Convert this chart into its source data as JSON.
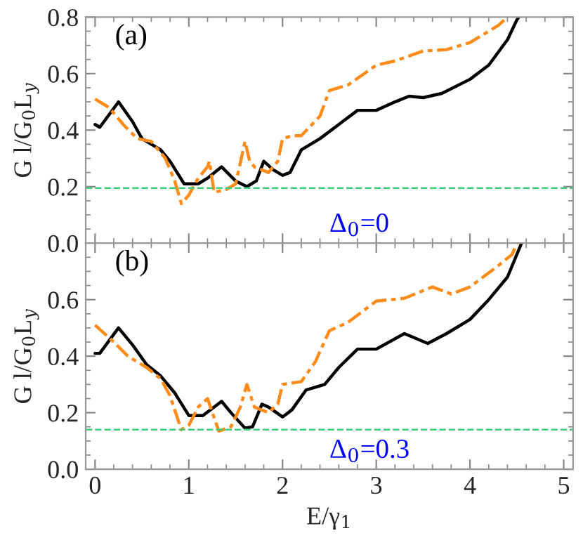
{
  "chart_data": [
    {
      "type": "line",
      "xlim": [
        -0.1,
        5.1
      ],
      "ylim": [
        0,
        0.8
      ],
      "xticks": [
        0,
        1,
        2,
        3,
        4,
        5
      ],
      "yticks": [
        {
          "value": 0,
          "label": "0.0"
        },
        {
          "value": 0.2,
          "label": "0.2"
        },
        {
          "value": 0.4,
          "label": "0.4"
        },
        {
          "value": 0.6,
          "label": "0.6"
        },
        {
          "value": 0.8,
          "label": "0.8"
        }
      ],
      "tick_labels": "y",
      "ylabel": "G l/G$_{0}$L$_{y}$",
      "annotations": [
        "(a)",
        "Δ$_{0}$=0"
      ],
      "ref_lines": [
        {
          "axis": "y",
          "value": 0.195,
          "color": "#3ccf7a",
          "line_style": "dashed"
        }
      ],
      "series": [
        {
          "color": "#000000",
          "line_style": "solid",
          "x": [
            0,
            0.05,
            0.25,
            0.4,
            0.5,
            0.7,
            0.8,
            0.95,
            1.1,
            1.2,
            1.35,
            1.5,
            1.62,
            1.72,
            1.8,
            1.9,
            2.0,
            2.08,
            2.2,
            2.4,
            2.6,
            2.8,
            3.0,
            3.2,
            3.35,
            3.5,
            3.7,
            4.0,
            4.2,
            4.4,
            4.5,
            4.52
          ],
          "values": [
            0.42,
            0.41,
            0.5,
            0.43,
            0.37,
            0.33,
            0.29,
            0.21,
            0.21,
            0.23,
            0.27,
            0.22,
            0.2,
            0.22,
            0.29,
            0.26,
            0.24,
            0.25,
            0.33,
            0.37,
            0.42,
            0.47,
            0.47,
            0.5,
            0.52,
            0.515,
            0.53,
            0.58,
            0.63,
            0.72,
            0.79,
            0.8
          ]
        },
        {
          "color": "#ff8c1a",
          "line_style": "dashed",
          "x": [
            0,
            0.15,
            0.3,
            0.45,
            0.6,
            0.75,
            0.85,
            0.92,
            1.0,
            1.1,
            1.2,
            1.22,
            1.27,
            1.4,
            1.5,
            1.6,
            1.65,
            1.7,
            1.85,
            1.95,
            2.0,
            2.1,
            2.2,
            2.4,
            2.5,
            2.7,
            3.0,
            3.2,
            3.5,
            3.75,
            4.0,
            4.3,
            4.4
          ],
          "values": [
            0.51,
            0.48,
            0.42,
            0.37,
            0.36,
            0.3,
            0.22,
            0.14,
            0.17,
            0.23,
            0.27,
            0.29,
            0.18,
            0.19,
            0.21,
            0.36,
            0.29,
            0.27,
            0.25,
            0.29,
            0.37,
            0.38,
            0.38,
            0.45,
            0.54,
            0.56,
            0.63,
            0.645,
            0.68,
            0.685,
            0.71,
            0.77,
            0.8
          ]
        }
      ]
    },
    {
      "type": "line",
      "xlim": [
        -0.1,
        5.1
      ],
      "ylim": [
        0,
        0.8
      ],
      "xticks": [
        0,
        1,
        2,
        3,
        4,
        5
      ],
      "yticks": [
        {
          "value": 0,
          "label": "0.0"
        },
        {
          "value": 0.2,
          "label": "0.2"
        },
        {
          "value": 0.4,
          "label": "0.4"
        },
        {
          "value": 0.6,
          "label": "0.6"
        }
      ],
      "xlabel": "E/γ$_{1}$",
      "ylabel": "G l/G$_{0}$L$_{y}$",
      "annotations": [
        "(b)",
        "Δ$_{0}$=0.3"
      ],
      "ref_lines": [
        {
          "axis": "y",
          "value": 0.14,
          "color": "#3ccf7a",
          "line_style": "dashed"
        }
      ],
      "series": [
        {
          "color": "#000000",
          "line_style": "solid",
          "x": [
            0,
            0.05,
            0.25,
            0.4,
            0.55,
            0.7,
            0.85,
            1.0,
            1.15,
            1.35,
            1.45,
            1.6,
            1.68,
            1.78,
            1.85,
            2.0,
            2.1,
            2.25,
            2.45,
            2.6,
            2.8,
            3.0,
            3.3,
            3.55,
            3.75,
            4.0,
            4.2,
            4.4,
            4.55
          ],
          "values": [
            0.41,
            0.41,
            0.5,
            0.44,
            0.37,
            0.33,
            0.27,
            0.19,
            0.19,
            0.24,
            0.2,
            0.145,
            0.15,
            0.23,
            0.22,
            0.185,
            0.21,
            0.28,
            0.3,
            0.36,
            0.425,
            0.425,
            0.48,
            0.445,
            0.48,
            0.53,
            0.6,
            0.68,
            0.8
          ]
        },
        {
          "color": "#ff8c1a",
          "line_style": "dashed",
          "x": [
            0,
            0.2,
            0.35,
            0.55,
            0.7,
            0.8,
            0.92,
            1.0,
            1.1,
            1.2,
            1.32,
            1.45,
            1.55,
            1.62,
            1.7,
            1.85,
            1.95,
            2.0,
            2.2,
            2.35,
            2.5,
            2.7,
            3.0,
            3.3,
            3.6,
            3.8,
            4.0,
            4.3,
            4.45,
            4.5
          ],
          "values": [
            0.51,
            0.45,
            0.4,
            0.36,
            0.32,
            0.26,
            0.14,
            0.155,
            0.22,
            0.25,
            0.135,
            0.15,
            0.22,
            0.3,
            0.22,
            0.2,
            0.23,
            0.3,
            0.31,
            0.38,
            0.49,
            0.52,
            0.595,
            0.605,
            0.645,
            0.62,
            0.645,
            0.72,
            0.76,
            0.8
          ]
        }
      ]
    }
  ]
}
